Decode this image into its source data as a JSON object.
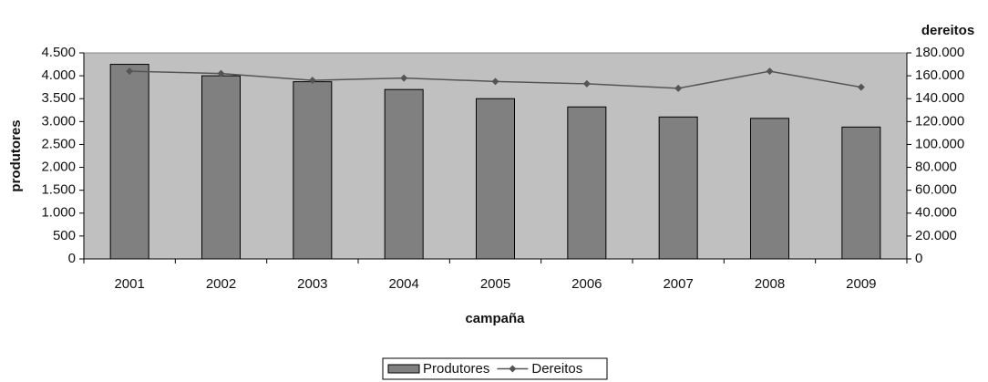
{
  "chart_data": {
    "type": "bar-line",
    "x_label": "campaña",
    "y_label": "produtores",
    "y2_label": "dereitos",
    "categories": [
      "2001",
      "2002",
      "2003",
      "2004",
      "2005",
      "2006",
      "2007",
      "2008",
      "2009"
    ],
    "series": [
      {
        "name": "Produtores",
        "type": "bar",
        "color": "#808080",
        "values": [
          4250,
          4000,
          3870,
          3700,
          3500,
          3320,
          3100,
          3070,
          2880
        ]
      },
      {
        "name": "Dereitos",
        "type": "line",
        "axis": "y2",
        "color": "#555555",
        "values": [
          164000,
          162000,
          156000,
          158000,
          155000,
          153000,
          149000,
          164000,
          150000
        ]
      }
    ],
    "ylim": [
      0,
      4500
    ],
    "yticks": [
      0,
      500,
      {
        "value": 1000,
        "label": "1.000"
      },
      {
        "value": 1500,
        "label": "1.500"
      },
      {
        "value": 2000,
        "label": "2.000"
      },
      {
        "value": 2500,
        "label": "2.500"
      },
      {
        "value": 3000,
        "label": "3.000"
      },
      {
        "value": 3500,
        "label": "3.500"
      },
      {
        "value": 4000,
        "label": "4.000"
      },
      {
        "value": 4500,
        "label": "4.500"
      }
    ],
    "y2lim": [
      0,
      180000
    ],
    "y2ticks": [
      0,
      {
        "value": 20000,
        "label": "20.000"
      },
      {
        "value": 40000,
        "label": "40.000"
      },
      {
        "value": 60000,
        "label": "60.000"
      },
      {
        "value": 80000,
        "label": "80.000"
      },
      {
        "value": 100000,
        "label": "100.000"
      },
      {
        "value": 120000,
        "label": "120.000"
      },
      {
        "value": 140000,
        "label": "140.000"
      },
      {
        "value": 160000,
        "label": "160.000"
      },
      {
        "value": 180000,
        "label": "180.000"
      }
    ],
    "legend": "bottom",
    "plot_background": "#c0c0c0"
  }
}
